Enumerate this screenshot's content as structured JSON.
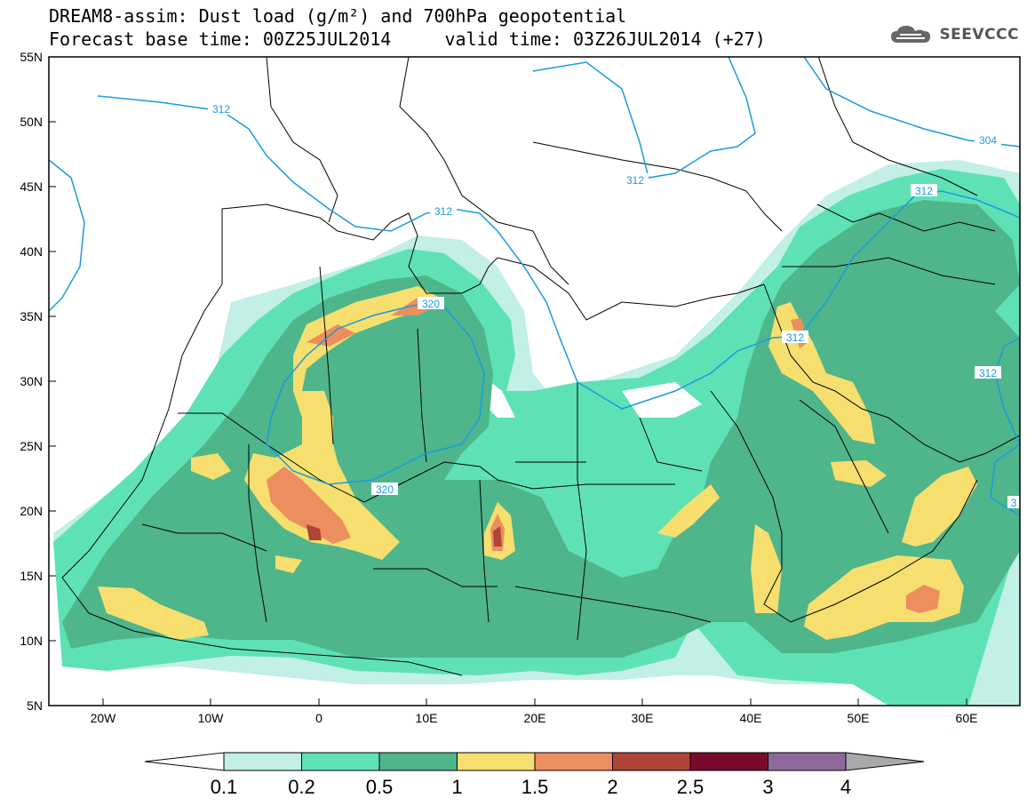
{
  "header": {
    "title_line1": "DREAM8-assim: Dust load (g/m²) and 700hPa geopotential",
    "title_line2": "Forecast base time: 00Z25JUL2014     valid time: 03Z26JUL2014 (+27)",
    "logo_text": "SEEVCCC"
  },
  "map": {
    "lat_labels": [
      "55N",
      "50N",
      "45N",
      "40N",
      "35N",
      "30N",
      "25N",
      "20N",
      "15N",
      "10N",
      "5N"
    ],
    "lon_labels": [
      "20W",
      "10W",
      "0",
      "10E",
      "20E",
      "30E",
      "40E",
      "50E",
      "60E"
    ],
    "contour_labels": [
      {
        "id": "c312a",
        "text": "312"
      },
      {
        "id": "c312b",
        "text": "312"
      },
      {
        "id": "c312c",
        "text": "312"
      },
      {
        "id": "c312d",
        "text": "312"
      },
      {
        "id": "c312e",
        "text": "312"
      },
      {
        "id": "c312f",
        "text": "312"
      },
      {
        "id": "c304",
        "text": "304"
      },
      {
        "id": "c320a",
        "text": "320"
      },
      {
        "id": "c320b",
        "text": "320"
      },
      {
        "id": "c3",
        "text": "3"
      }
    ],
    "colors": {
      "level_0_1": "#c2efe6",
      "level_0_2": "#5fe1b6",
      "level_0_5": "#4fb58b",
      "level_1": "#f6df6e",
      "level_1_5": "#ec8e5e",
      "level_2": "#ad4436",
      "level_2_5": "#7a0a2c",
      "level_3": "#8c6a9c",
      "contour": "#1a9be0"
    }
  },
  "colorbar": {
    "labels": [
      "0.1",
      "0.2",
      "0.5",
      "1",
      "1.5",
      "2",
      "2.5",
      "3",
      "4"
    ],
    "colors": [
      "#c2efe6",
      "#5fe1b6",
      "#4fb58b",
      "#f6df6e",
      "#ec8e5e",
      "#ad4436",
      "#7a0a2c",
      "#8c6a9c"
    ],
    "under_color": "#ffffff",
    "over_color": "#a9a9a9"
  }
}
